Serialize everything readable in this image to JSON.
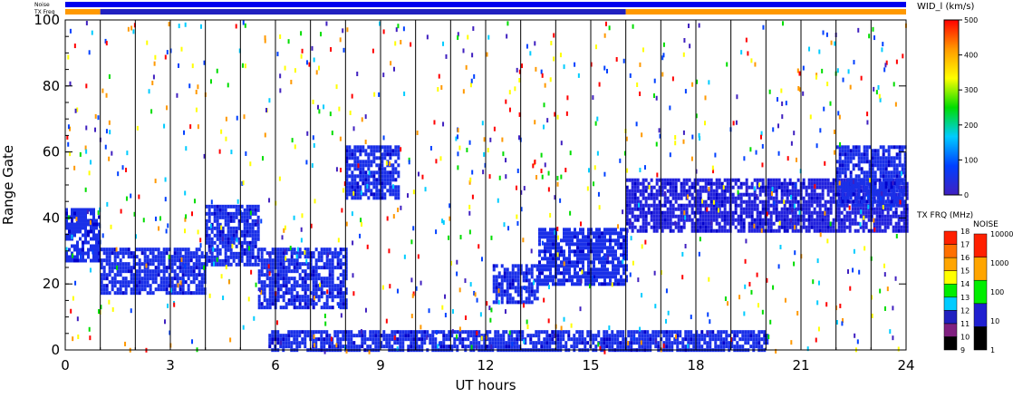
{
  "chart_data": [
    {
      "type": "heatmap",
      "title": "",
      "xlabel": "UT hours",
      "ylabel": "Range Gate",
      "xlim": [
        0,
        24
      ],
      "ylim": [
        0,
        100
      ],
      "x_ticks": [
        "0",
        "3",
        "6",
        "9",
        "12",
        "15",
        "18",
        "21",
        "24"
      ],
      "y_ticks": [
        "0",
        "20",
        "40",
        "60",
        "80",
        "100"
      ],
      "top_bars": {
        "noise_label": "Noise",
        "txfreq_label": "TX Freq",
        "noise_color": "#0000ee",
        "txfreq_segments": [
          {
            "start": 0,
            "end": 1,
            "color": "#ff9900"
          },
          {
            "start": 1,
            "end": 16,
            "color": "#2020c0"
          },
          {
            "start": 16,
            "end": 24,
            "color": "#ff9900"
          }
        ]
      },
      "scan_boundaries_ut": [
        1,
        2,
        3,
        4,
        5,
        6,
        7,
        8,
        9,
        10,
        11,
        12,
        13,
        14,
        15,
        16,
        17,
        18,
        19,
        20,
        21,
        22,
        23
      ],
      "echo_regions": [
        {
          "ut": [
            0,
            1
          ],
          "gate": [
            27,
            43
          ],
          "color": "#1a30e8"
        },
        {
          "ut": [
            1,
            4
          ],
          "gate": [
            17,
            31
          ],
          "color": "#1a30e8"
        },
        {
          "ut": [
            4,
            5.5
          ],
          "gate": [
            26,
            44
          ],
          "color": "#1a30e8"
        },
        {
          "ut": [
            5.5,
            8
          ],
          "gate": [
            13,
            31
          ],
          "color": "#1a30e8"
        },
        {
          "ut": [
            8,
            9.5
          ],
          "gate": [
            46,
            62
          ],
          "color": "#1a30e8"
        },
        {
          "ut": [
            12.2,
            13.5
          ],
          "gate": [
            14,
            26
          ],
          "color": "#1a30e8"
        },
        {
          "ut": [
            13.5,
            16
          ],
          "gate": [
            20,
            37
          ],
          "color": "#1a30e8"
        },
        {
          "ut": [
            16,
            24
          ],
          "gate": [
            36,
            52
          ],
          "color": "#2222dd"
        },
        {
          "ut": [
            22,
            24
          ],
          "gate": [
            44,
            62
          ],
          "color": "#1a30e8"
        },
        {
          "ut": [
            5.8,
            20
          ],
          "gate": [
            0,
            6
          ],
          "color": "#1a30e8"
        }
      ],
      "colorbars": [
        {
          "label": "WID_l (km/s)",
          "ticks": [
            "0",
            "100",
            "200",
            "300",
            "400",
            "500"
          ],
          "stops": [
            "#4020c0",
            "#0040ff",
            "#00ccff",
            "#00dd00",
            "#ffff00",
            "#ff9900",
            "#ff0000"
          ]
        },
        {
          "label": "TX FRQ (MHz)",
          "levels": [
            "9",
            "10",
            "11",
            "12",
            "13",
            "14",
            "15",
            "16",
            "17",
            "18"
          ],
          "colors": [
            "#000000",
            "#802080",
            "#2020c0",
            "#00ccff",
            "#00ee00",
            "#ffff00",
            "#ffa500",
            "#ff7000",
            "#ff2000"
          ]
        },
        {
          "label": "NOISE",
          "levels": [
            "1",
            "10",
            "100",
            "1000",
            "10000"
          ],
          "colors": [
            "#000000",
            "#2020d0",
            "#00ee00",
            "#ffa500",
            "#ff2000"
          ]
        }
      ]
    }
  ]
}
